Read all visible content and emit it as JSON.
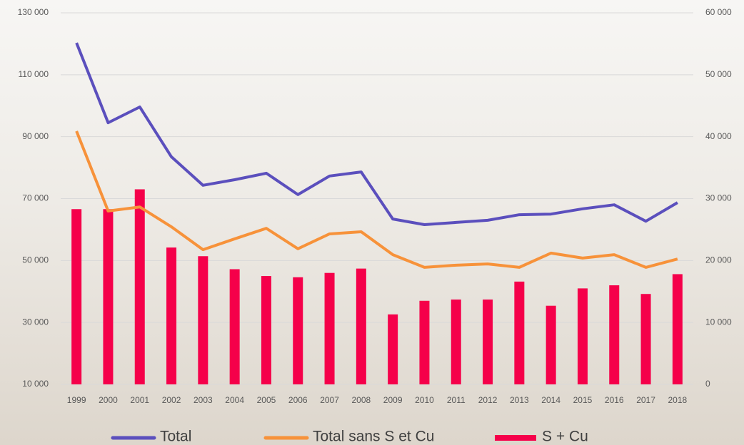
{
  "chart_data": {
    "type": "bar-line",
    "categories": [
      "1999",
      "2000",
      "2001",
      "2002",
      "2003",
      "2004",
      "2005",
      "2006",
      "2007",
      "2008",
      "2009",
      "2010",
      "2011",
      "2012",
      "2013",
      "2014",
      "2015",
      "2016",
      "2017",
      "2018"
    ],
    "series": [
      {
        "name": "Total",
        "type": "line",
        "color": "#5b4fbd",
        "values": [
          120300,
          94500,
          99600,
          83500,
          74300,
          76100,
          78200,
          71300,
          77300,
          78600,
          63400,
          61600,
          62300,
          63000,
          64800,
          65000,
          66700,
          68000,
          62700,
          68700
        ]
      },
      {
        "name": "Total sans S et Cu",
        "type": "line",
        "color": "#f7923a",
        "values": [
          91800,
          66000,
          67300,
          60900,
          53500,
          57000,
          60400,
          53800,
          58600,
          59300,
          51900,
          47800,
          48500,
          48900,
          47800,
          52400,
          50800,
          51900,
          47800,
          50500
        ]
      },
      {
        "name": "S + Cu",
        "type": "bar",
        "axis": "y2",
        "color": "#f5004a",
        "values": [
          28300,
          28300,
          31500,
          22100,
          20700,
          18600,
          17500,
          17300,
          18000,
          18700,
          11300,
          13500,
          13700,
          13700,
          16600,
          12700,
          15500,
          16000,
          14600,
          17800
        ]
      }
    ],
    "ylim": [
      10000,
      130000
    ],
    "yticks": [
      {
        "value": 10000,
        "label": "10 000"
      },
      {
        "value": 30000,
        "label": "30 000"
      },
      {
        "value": 50000,
        "label": "50 000"
      },
      {
        "value": 70000,
        "label": "70 000"
      },
      {
        "value": 90000,
        "label": "90 000"
      },
      {
        "value": 110000,
        "label": "110 000"
      },
      {
        "value": 130000,
        "label": "130 000"
      }
    ],
    "y2lim": [
      0,
      60000
    ],
    "y2ticks": [
      0,
      {
        "value": 10000,
        "label": "10 000"
      },
      {
        "value": 20000,
        "label": "20 000"
      },
      {
        "value": 30000,
        "label": "30 000"
      },
      {
        "value": 40000,
        "label": "40 000"
      },
      {
        "value": 50000,
        "label": "50 000"
      },
      {
        "value": 60000,
        "label": "60 000"
      }
    ],
    "grid": true
  }
}
